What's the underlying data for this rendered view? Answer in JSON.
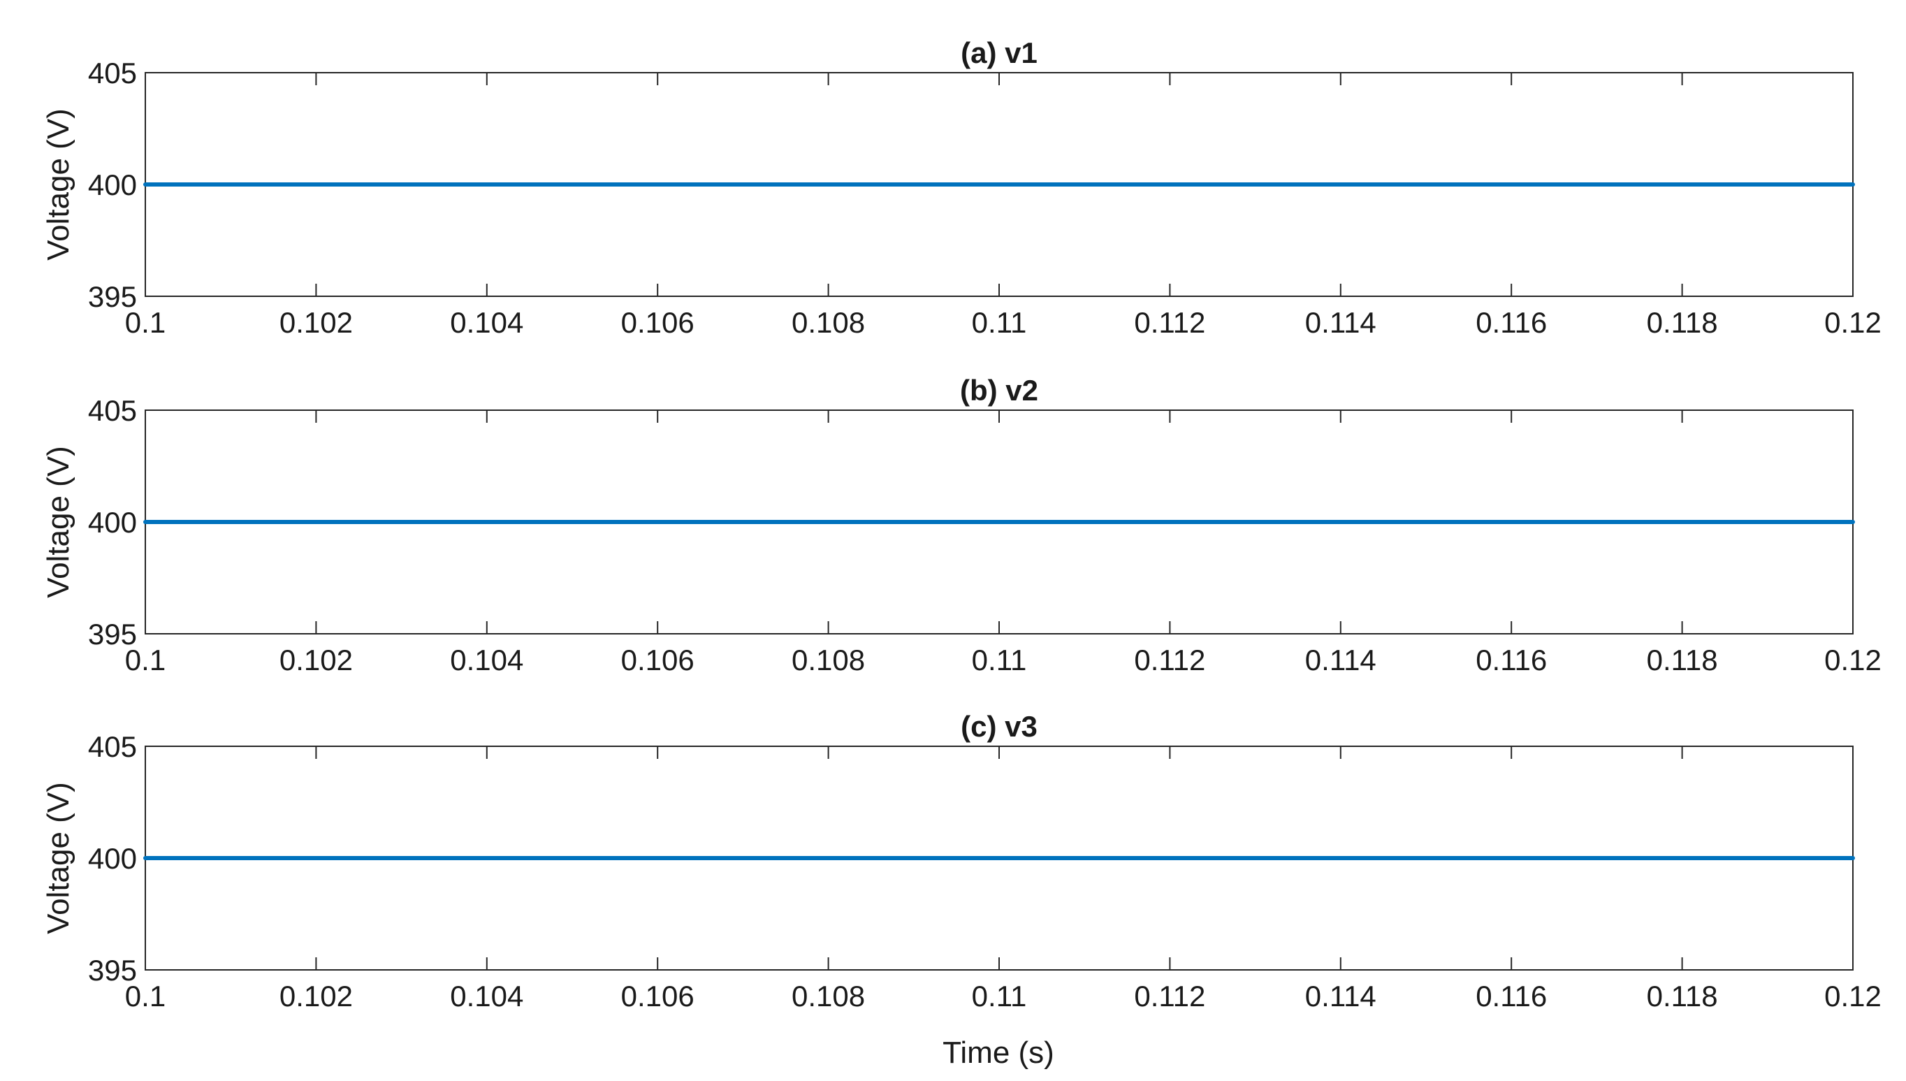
{
  "figure": {
    "xlabel": "Time (s)"
  },
  "chart_data": [
    {
      "type": "line",
      "title": "(a) v1",
      "xlabel": "",
      "ylabel": "Voltage (V)",
      "xlim": [
        0.1,
        0.12
      ],
      "ylim": [
        395,
        405
      ],
      "xticks": [
        "0.1",
        "0.102",
        "0.104",
        "0.106",
        "0.108",
        "0.11",
        "0.112",
        "0.114",
        "0.116",
        "0.118",
        "0.12"
      ],
      "yticks": [
        "395",
        "400",
        "405"
      ],
      "grid": false,
      "series": [
        {
          "color": "#0072BD",
          "x": [
            0.1,
            0.12
          ],
          "y": [
            400,
            400
          ]
        }
      ]
    },
    {
      "type": "line",
      "title": "(b) v2",
      "xlabel": "",
      "ylabel": "Voltage (V)",
      "xlim": [
        0.1,
        0.12
      ],
      "ylim": [
        395,
        405
      ],
      "xticks": [
        "0.1",
        "0.102",
        "0.104",
        "0.106",
        "0.108",
        "0.11",
        "0.112",
        "0.114",
        "0.116",
        "0.118",
        "0.12"
      ],
      "yticks": [
        "395",
        "400",
        "405"
      ],
      "grid": false,
      "series": [
        {
          "color": "#0072BD",
          "x": [
            0.1,
            0.12
          ],
          "y": [
            400,
            400
          ]
        }
      ]
    },
    {
      "type": "line",
      "title": "(c) v3",
      "xlabel": "Time (s)",
      "ylabel": "Voltage (V)",
      "xlim": [
        0.1,
        0.12
      ],
      "ylim": [
        395,
        405
      ],
      "xticks": [
        "0.1",
        "0.102",
        "0.104",
        "0.106",
        "0.108",
        "0.11",
        "0.112",
        "0.114",
        "0.116",
        "0.118",
        "0.12"
      ],
      "yticks": [
        "395",
        "400",
        "405"
      ],
      "grid": false,
      "series": [
        {
          "color": "#0072BD",
          "x": [
            0.1,
            0.12
          ],
          "y": [
            400,
            400
          ]
        }
      ]
    }
  ]
}
